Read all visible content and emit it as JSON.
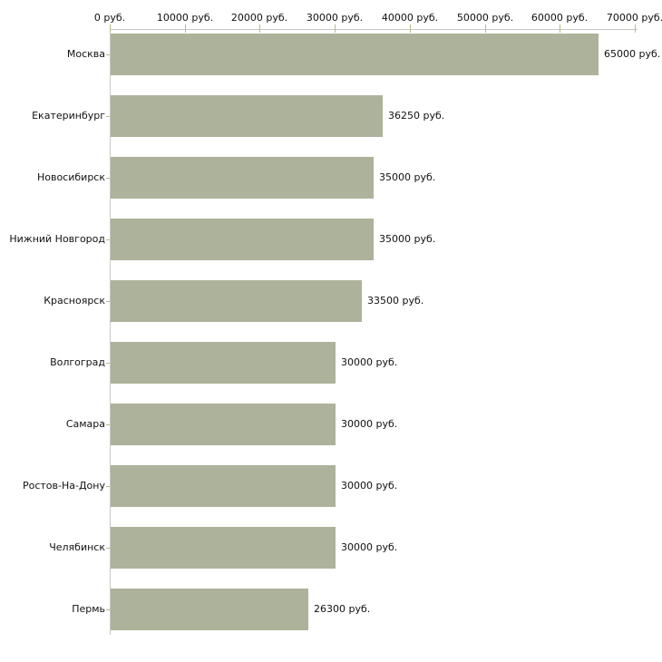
{
  "chart_data": {
    "type": "bar",
    "orientation": "horizontal",
    "title": "",
    "xlabel": "",
    "ylabel": "",
    "unit": "руб.",
    "categories": [
      "Москва",
      "Екатеринбург",
      "Новосибирск",
      "Нижний Новгород",
      "Красноярск",
      "Волгоград",
      "Самара",
      "Ростов-На-Дону",
      "Челябинск",
      "Пермь"
    ],
    "values": [
      65000,
      36250,
      35000,
      35000,
      33500,
      30000,
      30000,
      30000,
      30000,
      26300
    ],
    "value_labels": [
      "65000 руб.",
      "36250 руб.",
      "35000 руб.",
      "35000 руб.",
      "33500 руб.",
      "30000 руб.",
      "30000 руб.",
      "30000 руб.",
      "30000 руб.",
      "26300 руб."
    ],
    "x_axis": {
      "position": "top",
      "min": 0,
      "max": 70000,
      "tick_step": 10000,
      "tick_labels": [
        "0 руб.",
        "10000 руб.",
        "20000 руб.",
        "30000 руб.",
        "40000 руб.",
        "50000 руб.",
        "60000 руб.",
        "70000 руб."
      ]
    },
    "grid": false,
    "legend": false,
    "colors": {
      "bar": "#adb29a",
      "axis_line": "#c7c7c3",
      "tick_mark": "#b9ba8a",
      "text": "#111111",
      "background": "#ffffff"
    }
  }
}
